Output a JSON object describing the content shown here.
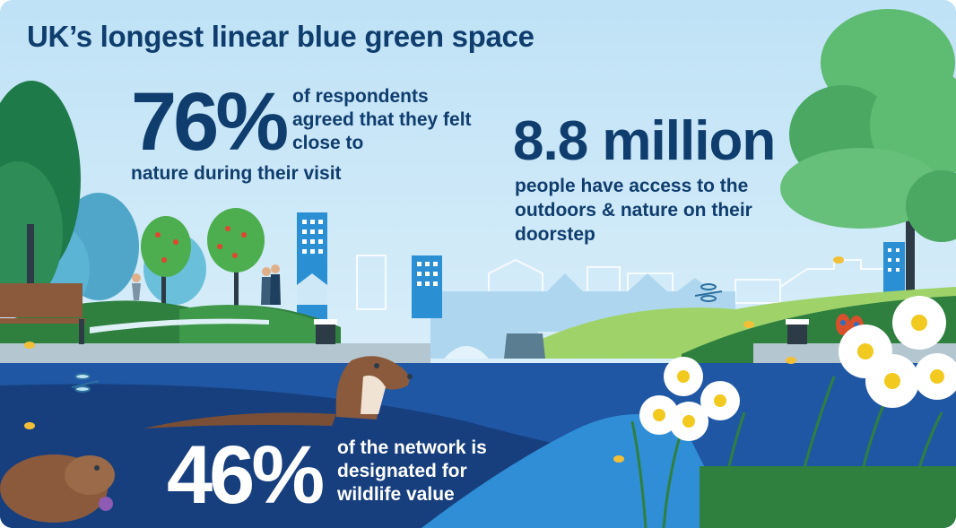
{
  "title": "UK’s longest linear blue green space",
  "stats": {
    "respondents": {
      "value": "76%",
      "caption_a": "of respondents agreed that they felt close to",
      "caption_b": "nature during their visit"
    },
    "access": {
      "value": "8.8 million",
      "caption": "people have access to the outdoors & nature on their doorstep"
    },
    "network": {
      "value": "46%",
      "caption": "of the network is designated for wildlife value"
    }
  },
  "colors": {
    "sky": "#cfe8f7",
    "text_dark": "#0f3d6e",
    "water": "#1f5aa8",
    "grass": "#3e9a4a"
  }
}
